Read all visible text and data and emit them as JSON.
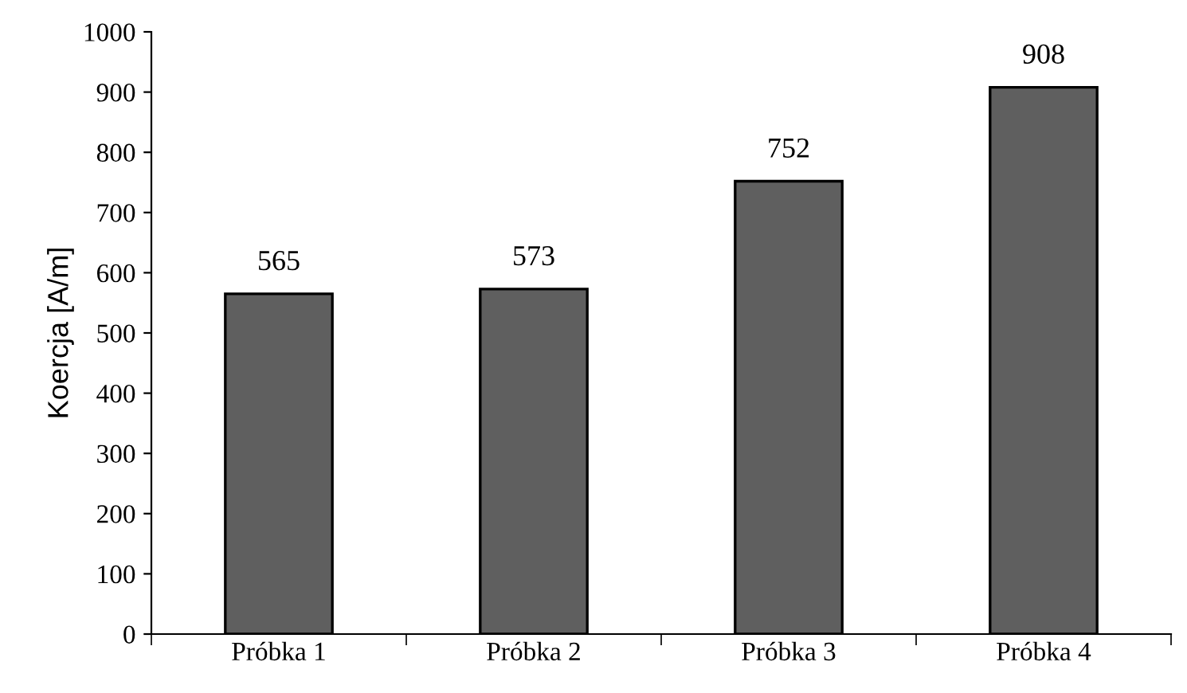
{
  "chart_data": {
    "type": "bar",
    "ylabel": "Koercja [A/m]",
    "categories": [
      "Próbka 1",
      "Próbka 2",
      "Próbka 3",
      "Próbka 4"
    ],
    "values": [
      565,
      573,
      752,
      908
    ],
    "color": "#5f5f5f",
    "ylim": [
      0,
      1000
    ],
    "yticks": [
      0,
      100,
      200,
      300,
      400,
      500,
      600,
      700,
      800,
      900,
      1000
    ],
    "data_labels": true,
    "grid": false,
    "legend": false
  }
}
